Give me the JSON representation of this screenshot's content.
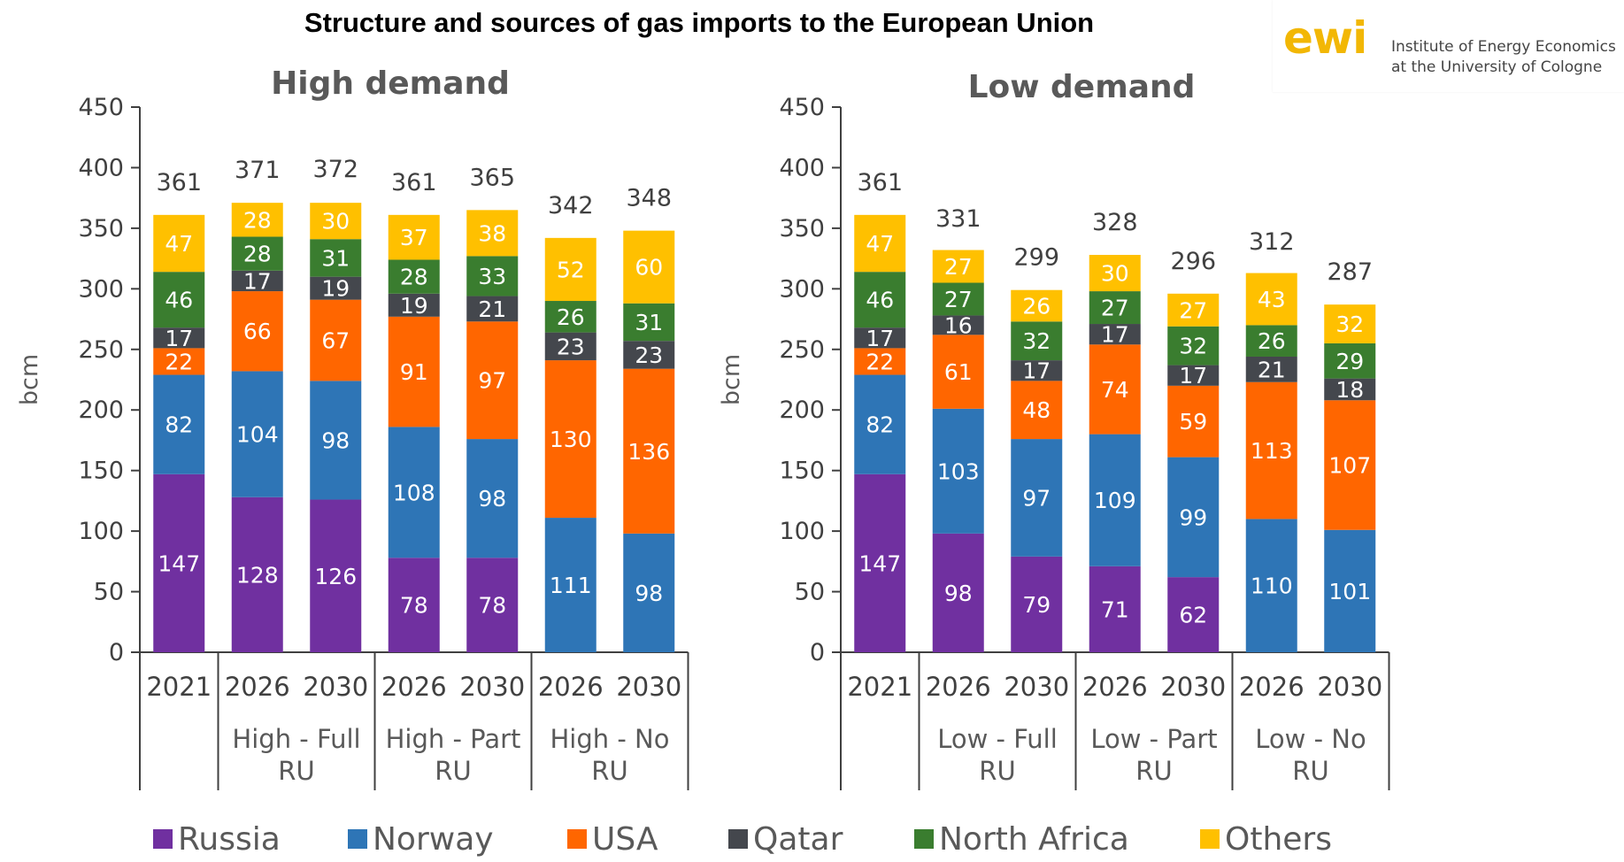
{
  "title": "Structure and sources of gas imports to the European Union",
  "logo": {
    "mark": "ewi",
    "line1": "Institute of Energy Economics",
    "line2": "at the University of Cologne",
    "color": "#f2b705"
  },
  "series_colors": {
    "Russia": "#7030a0",
    "Norway": "#2e75b6",
    "USA": "#ff6600",
    "Qatar": "#44474d",
    "North Africa": "#3a7d2f",
    "Others": "#ffc000"
  },
  "chart_data": [
    {
      "type": "bar",
      "stacked": true,
      "title": "High demand",
      "ylabel": "bcm",
      "ylim": [
        0,
        450
      ],
      "yticks": [
        0,
        50,
        100,
        150,
        200,
        250,
        300,
        350,
        400,
        450
      ],
      "categories": [
        "2021",
        "2026",
        "2030",
        "2026",
        "2030",
        "2026",
        "2030"
      ],
      "groups": [
        {
          "label": "",
          "span": 1
        },
        {
          "label": "High - Full RU",
          "line1": "High - Full",
          "line2": "RU",
          "span": 2
        },
        {
          "label": "High - Part RU",
          "line1": "High - Part",
          "line2": "RU",
          "span": 2
        },
        {
          "label": "High - No RU",
          "line1": "High - No",
          "line2": "RU",
          "span": 2
        }
      ],
      "series": [
        {
          "name": "Russia",
          "values": [
            147,
            128,
            126,
            78,
            78,
            0,
            0
          ]
        },
        {
          "name": "Norway",
          "values": [
            82,
            104,
            98,
            108,
            98,
            111,
            98
          ]
        },
        {
          "name": "USA",
          "values": [
            22,
            66,
            67,
            91,
            97,
            130,
            136
          ]
        },
        {
          "name": "Qatar",
          "values": [
            17,
            17,
            19,
            19,
            21,
            23,
            23
          ]
        },
        {
          "name": "North Africa",
          "values": [
            46,
            28,
            31,
            28,
            33,
            26,
            31
          ]
        },
        {
          "name": "Others",
          "values": [
            47,
            28,
            30,
            37,
            38,
            52,
            60
          ]
        }
      ],
      "totals": [
        361,
        371,
        372,
        361,
        365,
        342,
        348
      ]
    },
    {
      "type": "bar",
      "stacked": true,
      "title": "Low demand",
      "ylabel": "bcm",
      "ylim": [
        0,
        450
      ],
      "yticks": [
        0,
        50,
        100,
        150,
        200,
        250,
        300,
        350,
        400,
        450
      ],
      "categories": [
        "2021",
        "2026",
        "2030",
        "2026",
        "2030",
        "2026",
        "2030"
      ],
      "groups": [
        {
          "label": "",
          "span": 1
        },
        {
          "label": "Low - Full RU",
          "line1": "Low - Full",
          "line2": "RU",
          "span": 2
        },
        {
          "label": "Low - Part RU",
          "line1": "Low - Part",
          "line2": "RU",
          "span": 2
        },
        {
          "label": "Low - No RU",
          "line1": "Low - No",
          "line2": "RU",
          "span": 2
        }
      ],
      "series": [
        {
          "name": "Russia",
          "values": [
            147,
            98,
            79,
            71,
            62,
            0,
            0
          ]
        },
        {
          "name": "Norway",
          "values": [
            82,
            103,
            97,
            109,
            99,
            110,
            101
          ]
        },
        {
          "name": "USA",
          "values": [
            22,
            61,
            48,
            74,
            59,
            113,
            107
          ]
        },
        {
          "name": "Qatar",
          "values": [
            17,
            16,
            17,
            17,
            17,
            21,
            18
          ]
        },
        {
          "name": "North Africa",
          "values": [
            46,
            27,
            32,
            27,
            32,
            26,
            29
          ]
        },
        {
          "name": "Others",
          "values": [
            47,
            27,
            26,
            30,
            27,
            43,
            32
          ]
        }
      ],
      "totals": [
        361,
        331,
        299,
        328,
        296,
        312,
        287
      ]
    }
  ],
  "legend": [
    "Russia",
    "Norway",
    "USA",
    "Qatar",
    "North Africa",
    "Others"
  ]
}
